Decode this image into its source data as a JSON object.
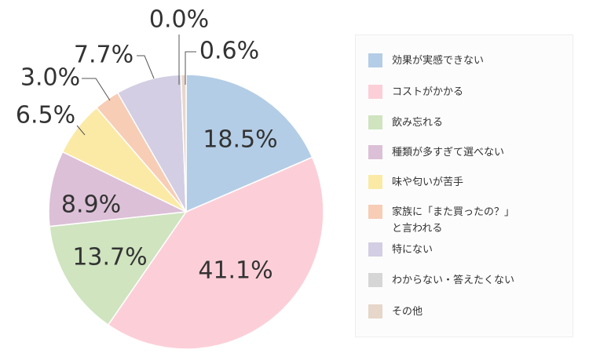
{
  "chart_data": {
    "type": "pie",
    "categories": [
      "効果が実感できない",
      "コストがかかる",
      "飲み忘れる",
      "種類が多すぎて選べない",
      "味や匂いが苦手",
      "家族に「また買ったの？」\nと言われる",
      "特にない",
      "わからない・答えたくない",
      "その他"
    ],
    "values": [
      18.5,
      41.1,
      13.7,
      8.9,
      6.5,
      3.0,
      7.7,
      0.0,
      0.6
    ],
    "value_labels": [
      "18.5%",
      "41.1%",
      "13.7%",
      "8.9%",
      "6.5%",
      "3.0%",
      "7.7%",
      "0.0%",
      "0.6%"
    ],
    "colors": [
      "#b4cde6",
      "#fccfd8",
      "#cfe4bf",
      "#dcc0d7",
      "#fbeaa6",
      "#f7cdb6",
      "#d3cee3",
      "#d6d6d6",
      "#e7d6ca"
    ],
    "legend": "right"
  }
}
